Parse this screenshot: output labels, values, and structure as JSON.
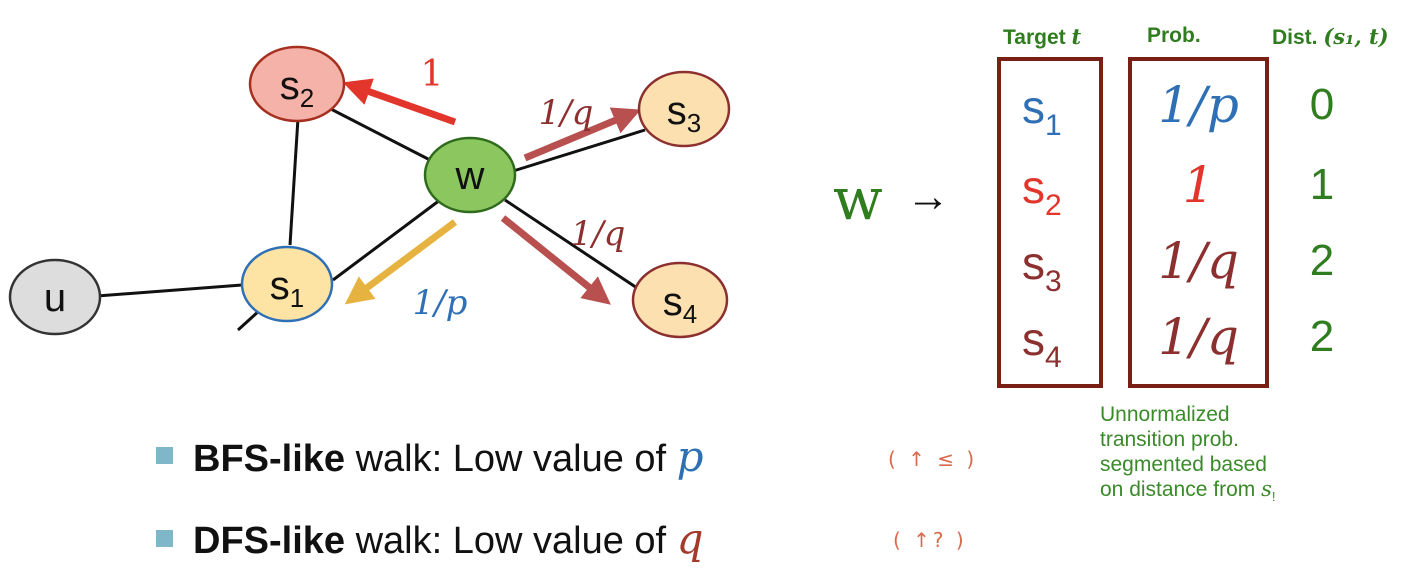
{
  "nodes": {
    "s1": {
      "base": "s",
      "sub": "1"
    },
    "s2": {
      "base": "s",
      "sub": "2"
    },
    "s3": {
      "base": "s",
      "sub": "3"
    },
    "s4": {
      "base": "s",
      "sub": "4"
    },
    "w": {
      "label": "w"
    },
    "u": {
      "label": "u"
    }
  },
  "edge_labels": {
    "to_s2": "1",
    "to_s3": "1/q",
    "to_s4": "1/q",
    "to_s1": "1/p"
  },
  "table": {
    "row_label": "w",
    "arrow": "→",
    "headers": {
      "target_text": "Target",
      "target_var": "t",
      "prob": "Prob.",
      "dist_text": "Dist.",
      "dist_expr": "(s₁, t)"
    },
    "rows": [
      {
        "target_base": "s",
        "target_sub": "1",
        "prob": "1/p",
        "dist": "0",
        "target_color": "#2e6fb5",
        "prob_color": "#2e6fb5"
      },
      {
        "target_base": "s",
        "target_sub": "2",
        "prob": "1",
        "dist": "1",
        "target_color": "#e2352b",
        "prob_color": "#e2352b"
      },
      {
        "target_base": "s",
        "target_sub": "3",
        "prob": "1/q",
        "dist": "2",
        "target_color": "#8c2f2f",
        "prob_color": "#8c2f2f"
      },
      {
        "target_base": "s",
        "target_sub": "4",
        "prob": "1/q",
        "dist": "2",
        "target_color": "#8c2f2f",
        "prob_color": "#8c2f2f"
      }
    ]
  },
  "caption": {
    "line1": "Unnormalized",
    "line2": "transition prob.",
    "line3": "segmented based",
    "line4_text": "on distance from ",
    "line4_var": "s",
    "line4_sub": "!"
  },
  "bullets": [
    {
      "bold": "BFS-like",
      "text": " walk: Low value of ",
      "var": "p",
      "var_color": "#2e6fb5",
      "note": "( ↑ ≤ )"
    },
    {
      "bold": "DFS-like",
      "text": " walk: Low value of ",
      "var": "q",
      "var_color": "#a33a2a",
      "note": "( ↑? )"
    }
  ],
  "colors": {
    "green": "#2f7d1f",
    "maroon": "#8c2f2f",
    "red": "#e2352b",
    "blue": "#2e6fb5",
    "orange": "#e6b340",
    "box_border": "#7a1f14"
  }
}
